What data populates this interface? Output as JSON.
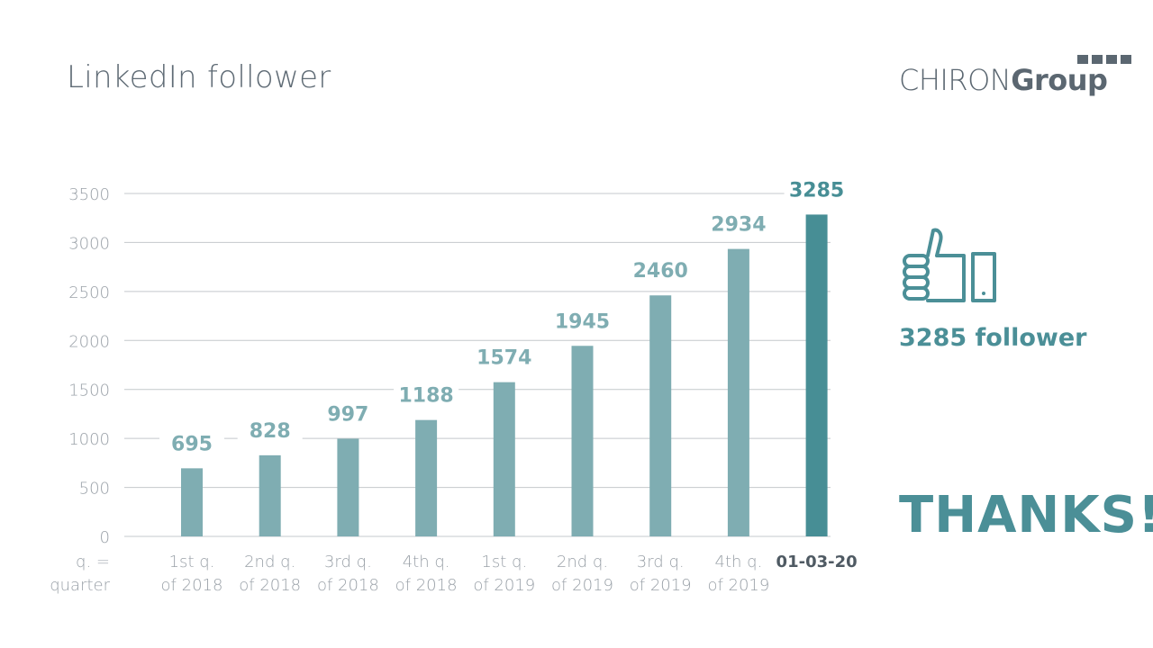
{
  "header": {
    "title": "LinkedIn follower",
    "logo": {
      "text_regular": "CHIRON",
      "text_bold": "Group"
    }
  },
  "chart_data": {
    "type": "bar",
    "title": "LinkedIn follower",
    "x_axis_note": [
      "q. =",
      "quarter"
    ],
    "categories": [
      [
        "1st q.",
        "of 2018"
      ],
      [
        "2nd q.",
        "of 2018"
      ],
      [
        "3rd q.",
        "of 2018"
      ],
      [
        "4th q.",
        "of 2018"
      ],
      [
        "1st q.",
        "of 2019"
      ],
      [
        "2nd q.",
        "of 2019"
      ],
      [
        "3rd q.",
        "of 2019"
      ],
      [
        "4th q.",
        "of 2019"
      ],
      [
        "01-03-20"
      ]
    ],
    "values": [
      695,
      828,
      997,
      1188,
      1574,
      1945,
      2460,
      2934,
      3285
    ],
    "highlight_index": 8,
    "ylim": [
      0,
      3500
    ],
    "yticks": [
      0,
      500,
      1000,
      1500,
      2000,
      2500,
      3000,
      3500
    ],
    "grid": true,
    "colors": {
      "bar": "#7fadb2",
      "highlight": "#478e95",
      "value": "#7fadb2",
      "value_highlight": "#478e95",
      "grid": "#c4c8cc",
      "axis_text": "#9aa1a8"
    }
  },
  "side_panel": {
    "icon": "thumbs-up-icon",
    "count_label": "3285 follower",
    "thanks_label": "THANKS!"
  }
}
